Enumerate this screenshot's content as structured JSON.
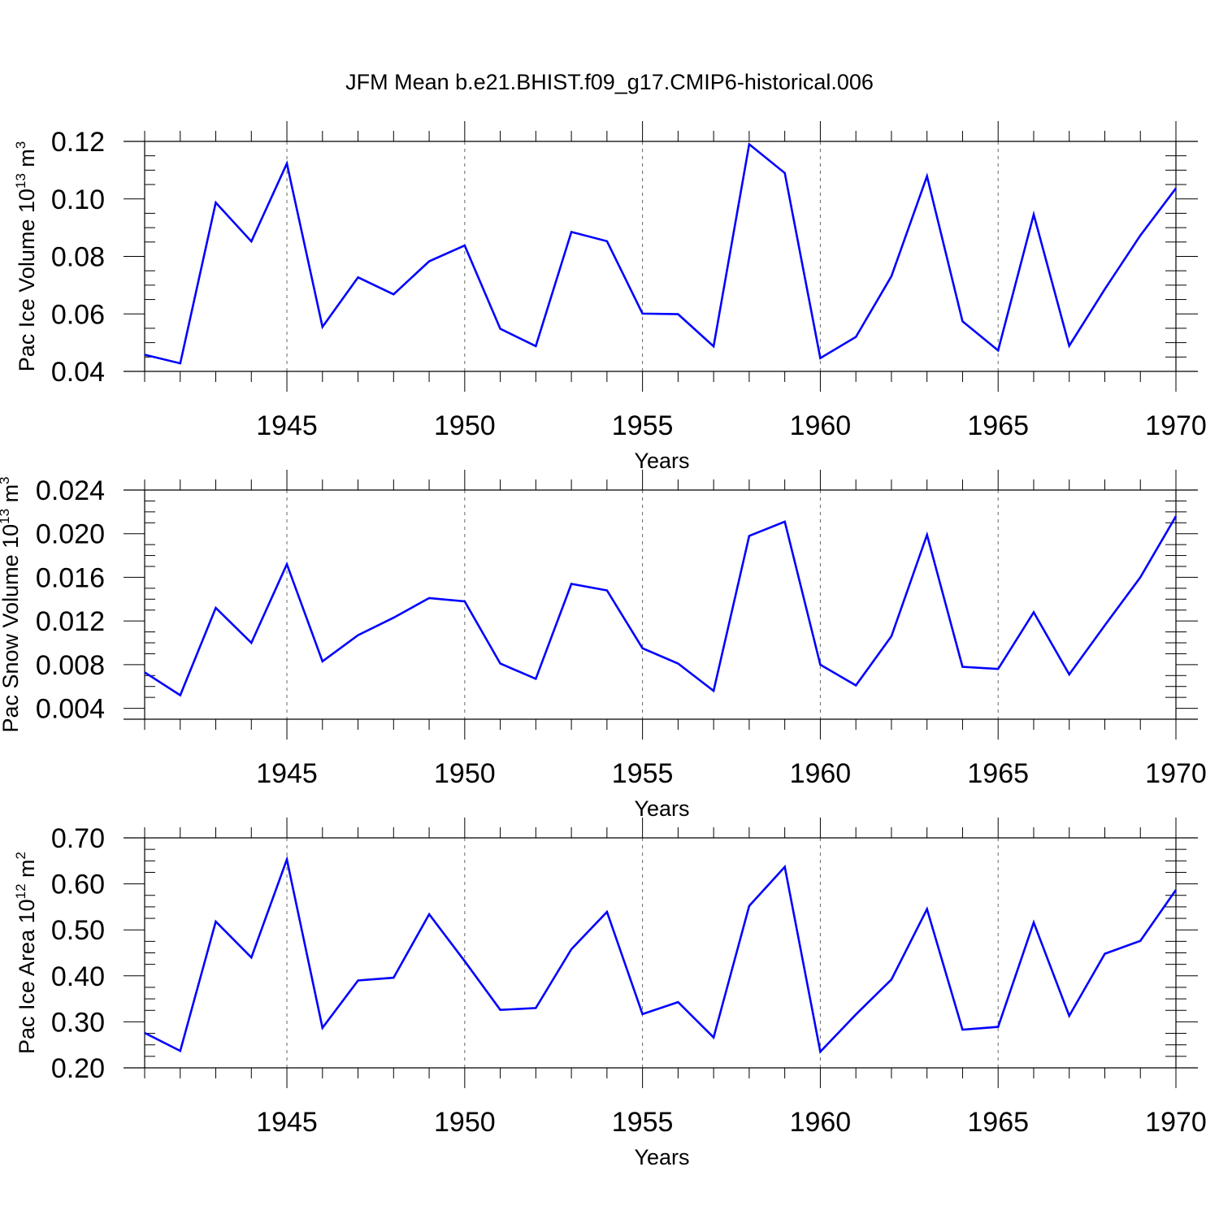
{
  "title": "JFM Mean b.e21.BHIST.f09_g17.CMIP6-historical.006",
  "colors": {
    "series": "#0000ff",
    "axis": "#000000",
    "grid": "#666666",
    "background": "#ffffff"
  },
  "chart_data": [
    {
      "type": "line",
      "title": "JFM Mean b.e21.BHIST.f09_g17.CMIP6-historical.006",
      "xlabel": "Years",
      "ylabel": {
        "prefix": "Pac Ice Volume 10",
        "exponent": "13",
        "unit": " m",
        "unit_exponent": "3"
      },
      "xlim": [
        1941,
        1970
      ],
      "ylim": [
        0.04,
        0.12
      ],
      "xticks": [
        1945,
        1950,
        1955,
        1960,
        1965,
        1970
      ],
      "xtick_labels": [
        "1945",
        "1950",
        "1955",
        "1960",
        "1965",
        "1970"
      ],
      "yticks": [
        0.04,
        0.06,
        0.08,
        0.1,
        0.12
      ],
      "ytick_labels": [
        "0.04",
        "0.06",
        "0.08",
        "0.10",
        "0.12"
      ],
      "grid": "vertical dashed at major x ticks",
      "x": [
        1941,
        1942,
        1943,
        1944,
        1945,
        1946,
        1947,
        1948,
        1949,
        1950,
        1951,
        1952,
        1953,
        1954,
        1955,
        1956,
        1957,
        1958,
        1959,
        1960,
        1961,
        1962,
        1963,
        1964,
        1965,
        1966,
        1967,
        1968,
        1969,
        1970
      ],
      "y": [
        0.0458,
        0.0428,
        0.0987,
        0.0852,
        0.1123,
        0.0555,
        0.0727,
        0.0668,
        0.0783,
        0.0838,
        0.0548,
        0.0488,
        0.0885,
        0.0853,
        0.0601,
        0.0599,
        0.0487,
        0.119,
        0.109,
        0.0446,
        0.052,
        0.0731,
        0.1079,
        0.0574,
        0.0473,
        0.0946,
        0.0489,
        0.0686,
        0.0873,
        0.1037
      ]
    },
    {
      "type": "line",
      "xlabel": "Years",
      "ylabel": {
        "prefix": "Pac Snow Volume 10",
        "exponent": "13",
        "unit": " m",
        "unit_exponent": "3"
      },
      "xlim": [
        1941,
        1970
      ],
      "ylim": [
        0.003,
        0.024
      ],
      "xticks": [
        1945,
        1950,
        1955,
        1960,
        1965,
        1970
      ],
      "xtick_labels": [
        "1945",
        "1950",
        "1955",
        "1960",
        "1965",
        "1970"
      ],
      "yticks": [
        0.004,
        0.008,
        0.012,
        0.016,
        0.02,
        0.024
      ],
      "ytick_labels": [
        "0.004",
        "0.008",
        "0.012",
        "0.016",
        "0.020",
        "0.024"
      ],
      "grid": "vertical dashed at major x ticks",
      "x": [
        1941,
        1942,
        1943,
        1944,
        1945,
        1946,
        1947,
        1948,
        1949,
        1950,
        1951,
        1952,
        1953,
        1954,
        1955,
        1956,
        1957,
        1958,
        1959,
        1960,
        1961,
        1962,
        1963,
        1964,
        1965,
        1966,
        1967,
        1968,
        1969,
        1970
      ],
      "y": [
        0.0073,
        0.0052,
        0.0132,
        0.01,
        0.0172,
        0.0083,
        0.0107,
        0.0123,
        0.0141,
        0.0138,
        0.0081,
        0.0067,
        0.0154,
        0.0148,
        0.0095,
        0.0081,
        0.0056,
        0.0198,
        0.0211,
        0.008,
        0.0061,
        0.0106,
        0.0199,
        0.0078,
        0.0076,
        0.0128,
        0.0071,
        0.0116,
        0.016,
        0.0216
      ]
    },
    {
      "type": "line",
      "xlabel": "Years",
      "ylabel": {
        "prefix": "Pac Ice Area 10",
        "exponent": "12",
        "unit": " m",
        "unit_exponent": "2"
      },
      "xlim": [
        1941,
        1970
      ],
      "ylim": [
        0.2,
        0.7
      ],
      "xticks": [
        1945,
        1950,
        1955,
        1960,
        1965,
        1970
      ],
      "xtick_labels": [
        "1945",
        "1950",
        "1955",
        "1960",
        "1965",
        "1970"
      ],
      "yticks": [
        0.2,
        0.3,
        0.4,
        0.5,
        0.6,
        0.7
      ],
      "ytick_labels": [
        "0.20",
        "0.30",
        "0.40",
        "0.50",
        "0.60",
        "0.70"
      ],
      "grid": "vertical dashed at major x ticks",
      "x": [
        1941,
        1942,
        1943,
        1944,
        1945,
        1946,
        1947,
        1948,
        1949,
        1950,
        1951,
        1952,
        1953,
        1954,
        1955,
        1956,
        1957,
        1958,
        1959,
        1960,
        1961,
        1962,
        1963,
        1964,
        1965,
        1966,
        1967,
        1968,
        1969,
        1970
      ],
      "y": [
        0.276,
        0.237,
        0.518,
        0.44,
        0.653,
        0.287,
        0.39,
        0.396,
        0.534,
        0.432,
        0.326,
        0.33,
        0.458,
        0.539,
        0.317,
        0.343,
        0.266,
        0.552,
        0.637,
        0.235,
        0.316,
        0.392,
        0.545,
        0.283,
        0.289,
        0.516,
        0.313,
        0.448,
        0.476,
        0.587
      ]
    }
  ]
}
